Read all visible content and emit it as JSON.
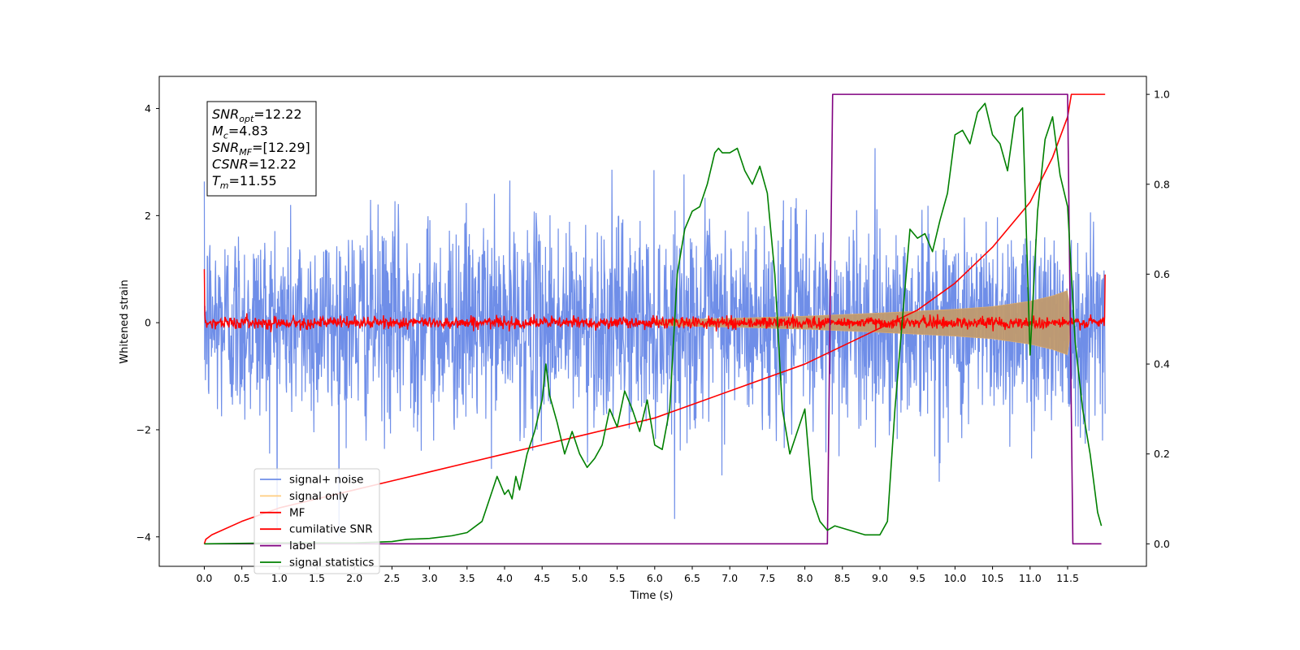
{
  "chart_data": {
    "type": "line",
    "xlabel": "Time (s)",
    "ylabel": "Whitened strain",
    "xlim": [
      -0.6,
      12.55
    ],
    "ylim": [
      -4.55,
      4.6
    ],
    "ylim_right": [
      -0.05,
      1.04
    ],
    "x_ticks": [
      "0.0",
      "0.5",
      "1.0",
      "1.5",
      "2.0",
      "2.5",
      "3.0",
      "3.5",
      "4.0",
      "4.5",
      "5.0",
      "5.5",
      "6.0",
      "6.5",
      "7.0",
      "7.5",
      "8.0",
      "8.5",
      "9.0",
      "9.5",
      "10.0",
      "10.5",
      "11.0",
      "11.5"
    ],
    "y_ticks": [
      "4",
      "2",
      "0",
      "−2",
      "−4"
    ],
    "y_ticks_right": [
      "1.0",
      "0.8",
      "0.6",
      "0.4",
      "0.2",
      "0.0"
    ],
    "annotation": {
      "lines": [
        {
          "base": "SNR",
          "sub": "opt",
          "rest": "=12.22"
        },
        {
          "base": "M",
          "sub": "c",
          "rest": "=4.83"
        },
        {
          "base": "SNR",
          "sub": "MF",
          "rest": "=[12.29]"
        },
        {
          "base": "CSNR",
          "sub": "",
          "rest": "=12.22"
        },
        {
          "base": "T",
          "sub": "m",
          "rest": "=11.55"
        }
      ]
    },
    "series": [
      {
        "name": "signal+ noise",
        "color": "#6f8ee8",
        "axis": "left",
        "kind": "noise",
        "x_range": [
          0.0,
          12.0
        ],
        "amplitude": "≈ ±2.5 typical, peaks ≈ ±4"
      },
      {
        "name": "signal only",
        "color": "#ffcc80",
        "axis": "left",
        "kind": "chirp",
        "x_range": [
          0.0,
          11.55
        ],
        "envelope": {
          "x": [
            6.0,
            7.0,
            8.0,
            9.0,
            10.0,
            10.5,
            11.0,
            11.3,
            11.5,
            11.55
          ],
          "y": [
            0.05,
            0.08,
            0.12,
            0.18,
            0.25,
            0.3,
            0.4,
            0.5,
            0.6,
            0.0
          ]
        }
      },
      {
        "name": "MF",
        "color": "#ff0000",
        "axis": "left",
        "kind": "mf-noise",
        "x_range": [
          0.0,
          12.0
        ],
        "amplitude": "≈ ±0.15, spikes to 1.0 at ends"
      },
      {
        "name": "cumilative SNR",
        "color": "#ff0000",
        "axis": "right",
        "x": [
          0.0,
          0.02,
          0.1,
          0.5,
          1.0,
          1.5,
          2.0,
          2.5,
          3.0,
          3.5,
          4.0,
          4.5,
          5.0,
          5.5,
          6.0,
          6.5,
          7.0,
          7.5,
          8.0,
          8.5,
          9.0,
          9.5,
          10.0,
          10.5,
          11.0,
          11.3,
          11.5,
          11.55,
          12.0
        ],
        "y": [
          0.0,
          0.01,
          0.02,
          0.05,
          0.08,
          0.1,
          0.12,
          0.14,
          0.16,
          0.18,
          0.2,
          0.22,
          0.24,
          0.26,
          0.28,
          0.31,
          0.34,
          0.37,
          0.4,
          0.44,
          0.48,
          0.52,
          0.58,
          0.66,
          0.76,
          0.86,
          0.95,
          1.0,
          1.0
        ]
      },
      {
        "name": "label",
        "color": "#800080",
        "axis": "right",
        "x": [
          0.0,
          8.3,
          8.37,
          11.5,
          11.57,
          11.95
        ],
        "y": [
          0.0,
          0.0,
          1.0,
          1.0,
          0.0,
          0.0
        ]
      },
      {
        "name": "signal statistics",
        "color": "#008000",
        "axis": "right",
        "x": [
          0.0,
          1.0,
          2.0,
          2.5,
          2.7,
          3.0,
          3.3,
          3.5,
          3.7,
          3.8,
          3.9,
          4.0,
          4.05,
          4.1,
          4.15,
          4.2,
          4.3,
          4.4,
          4.5,
          4.55,
          4.6,
          4.7,
          4.8,
          4.9,
          5.0,
          5.1,
          5.2,
          5.3,
          5.4,
          5.5,
          5.6,
          5.7,
          5.8,
          5.9,
          6.0,
          6.1,
          6.2,
          6.3,
          6.4,
          6.5,
          6.6,
          6.7,
          6.8,
          6.85,
          6.9,
          7.0,
          7.1,
          7.2,
          7.3,
          7.4,
          7.5,
          7.6,
          7.7,
          7.8,
          7.9,
          8.0,
          8.1,
          8.2,
          8.3,
          8.4,
          8.6,
          8.8,
          9.0,
          9.1,
          9.2,
          9.3,
          9.4,
          9.5,
          9.6,
          9.7,
          9.8,
          9.9,
          10.0,
          10.1,
          10.2,
          10.3,
          10.4,
          10.5,
          10.6,
          10.7,
          10.8,
          10.9,
          11.0,
          11.1,
          11.2,
          11.3,
          11.4,
          11.5,
          11.6,
          11.7,
          11.8,
          11.9,
          11.95
        ],
        "y": [
          0.0,
          0.002,
          0.002,
          0.005,
          0.01,
          0.012,
          0.018,
          0.025,
          0.05,
          0.1,
          0.15,
          0.11,
          0.12,
          0.1,
          0.15,
          0.12,
          0.2,
          0.25,
          0.32,
          0.4,
          0.33,
          0.27,
          0.2,
          0.25,
          0.2,
          0.17,
          0.19,
          0.22,
          0.3,
          0.26,
          0.34,
          0.3,
          0.25,
          0.32,
          0.22,
          0.21,
          0.3,
          0.6,
          0.7,
          0.74,
          0.75,
          0.8,
          0.87,
          0.88,
          0.87,
          0.87,
          0.88,
          0.83,
          0.8,
          0.84,
          0.78,
          0.6,
          0.3,
          0.2,
          0.25,
          0.3,
          0.1,
          0.05,
          0.03,
          0.04,
          0.03,
          0.02,
          0.02,
          0.05,
          0.3,
          0.5,
          0.7,
          0.68,
          0.69,
          0.65,
          0.72,
          0.78,
          0.91,
          0.92,
          0.89,
          0.96,
          0.98,
          0.91,
          0.89,
          0.83,
          0.95,
          0.97,
          0.42,
          0.74,
          0.9,
          0.95,
          0.82,
          0.75,
          0.45,
          0.3,
          0.2,
          0.07,
          0.04
        ]
      }
    ],
    "legend": {
      "position": "lower-left",
      "entries": [
        "signal+ noise",
        "signal only",
        "MF",
        "cumilative SNR",
        "label",
        "signal statistics"
      ]
    }
  }
}
